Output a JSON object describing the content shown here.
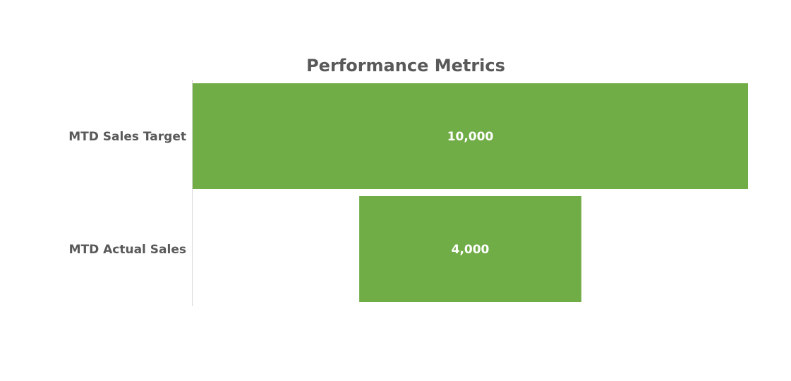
{
  "chart_data": {
    "type": "bar",
    "orientation": "horizontal",
    "style": "funnel",
    "title": "Performance Metrics",
    "categories": [
      "MTD Sales Target",
      "MTD Actual Sales"
    ],
    "values": [
      10000,
      4000
    ],
    "data_labels": [
      "10,000",
      "4,000"
    ],
    "xlim": [
      0,
      10000
    ],
    "grid": false,
    "legend": "none",
    "colors": {
      "bar": "#70AD47",
      "axis": "#D9D9D9",
      "text": "#595959",
      "label": "#FFFFFF"
    }
  }
}
